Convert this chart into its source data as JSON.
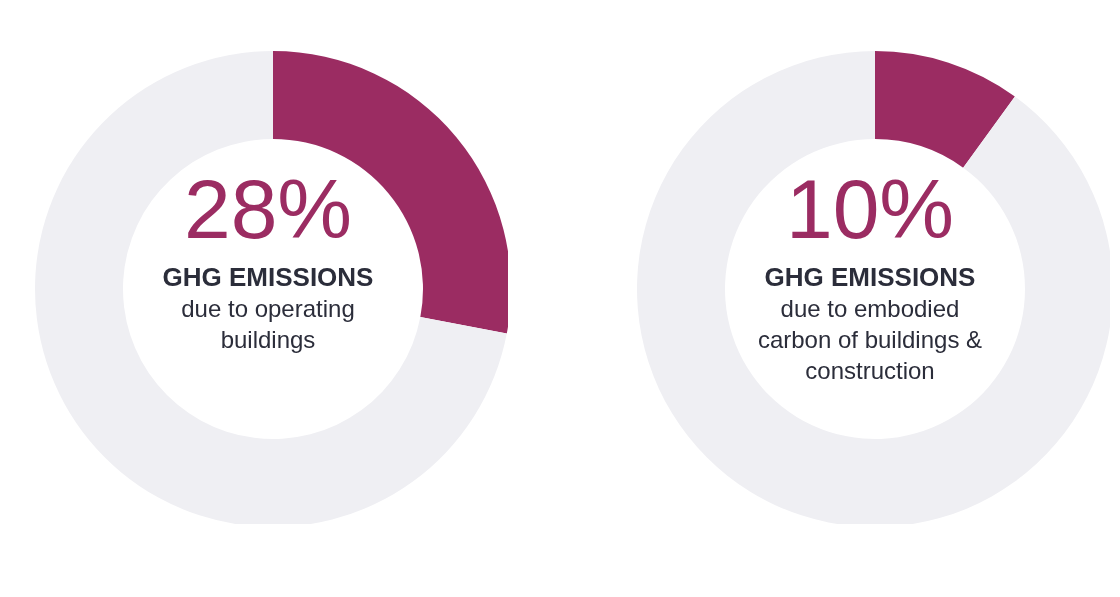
{
  "chart_data": [
    {
      "type": "donut",
      "title": "GHG EMISSIONS",
      "subtitle": "due to operating buildings",
      "categories": [
        null,
        null
      ],
      "values": [
        28,
        72
      ],
      "colors": [
        "#9b2c62",
        "#efeff3"
      ],
      "value_labels": [
        "28%",
        null
      ]
    },
    {
      "type": "donut",
      "title": "GHG EMISSIONS",
      "subtitle": "due to embodied carbon of buildings & construction",
      "categories": [
        null,
        null
      ],
      "values": [
        10,
        90
      ],
      "colors": [
        "#9b2c62",
        "#efeff3"
      ],
      "value_labels": [
        "10%",
        null
      ]
    }
  ]
}
